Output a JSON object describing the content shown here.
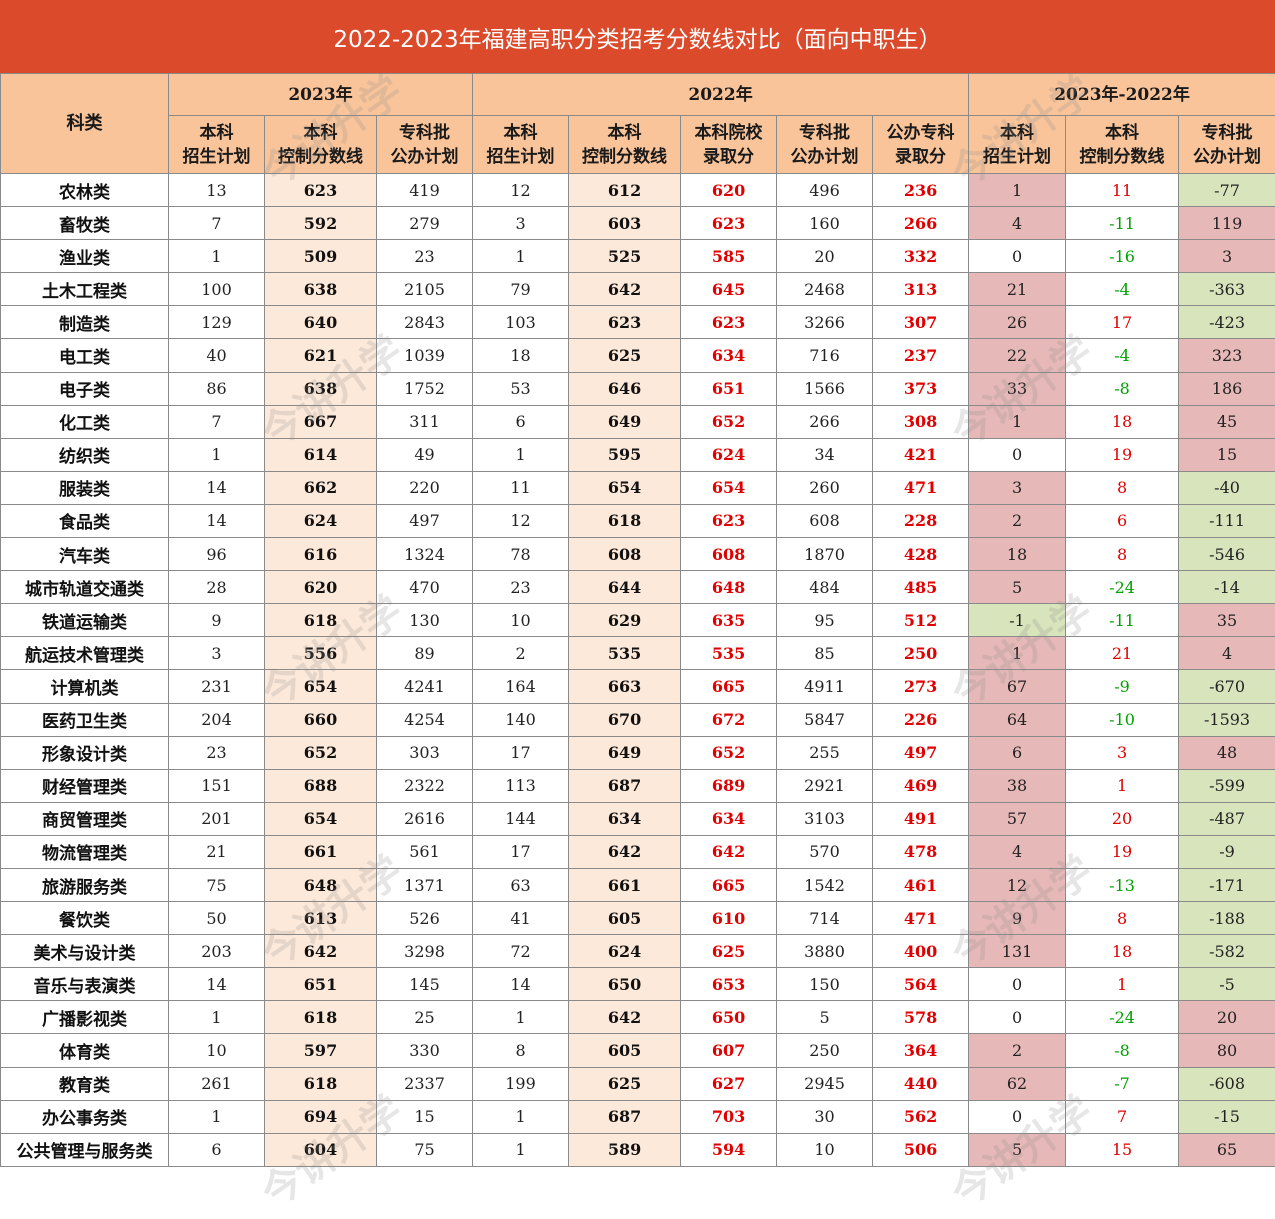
{
  "title": "2022-2023年福建高职分类招考分数线对比（面向中职生）",
  "header": {
    "subject": "科类",
    "group_2023": "2023年",
    "group_2022": "2022年",
    "group_diff": "2023年-2022年",
    "cols_2023": [
      {
        "l1": "本科",
        "l2": "招生计划"
      },
      {
        "l1": "本科",
        "l2": "控制分数线"
      },
      {
        "l1": "专科批",
        "l2": "公办计划"
      }
    ],
    "cols_2022": [
      {
        "l1": "本科",
        "l2": "招生计划"
      },
      {
        "l1": "本科",
        "l2": "控制分数线"
      },
      {
        "l1": "本科院校",
        "l2": "录取分"
      },
      {
        "l1": "专科批",
        "l2": "公办计划"
      },
      {
        "l1": "公办专科",
        "l2": "录取分"
      }
    ],
    "cols_diff": [
      {
        "l1": "本科",
        "l2": "招生计划"
      },
      {
        "l1": "本科",
        "l2": "控制分数线"
      },
      {
        "l1": "专科批",
        "l2": "公办计划"
      }
    ]
  },
  "watermark": "今讲升学",
  "rows": [
    {
      "subject": "农林类",
      "p23": "13",
      "c23": "623",
      "z23": "419",
      "p22": "12",
      "c22": "612",
      "a22": "620",
      "z22": "496",
      "s22": "236",
      "dp": "1",
      "dc": "11",
      "dz": "-77"
    },
    {
      "subject": "畜牧类",
      "p23": "7",
      "c23": "592",
      "z23": "279",
      "p22": "3",
      "c22": "603",
      "a22": "623",
      "z22": "160",
      "s22": "266",
      "dp": "4",
      "dc": "-11",
      "dz": "119"
    },
    {
      "subject": "渔业类",
      "p23": "1",
      "c23": "509",
      "z23": "23",
      "p22": "1",
      "c22": "525",
      "a22": "585",
      "z22": "20",
      "s22": "332",
      "dp": "0",
      "dc": "-16",
      "dz": "3"
    },
    {
      "subject": "土木工程类",
      "p23": "100",
      "c23": "638",
      "z23": "2105",
      "p22": "79",
      "c22": "642",
      "a22": "645",
      "z22": "2468",
      "s22": "313",
      "dp": "21",
      "dc": "-4",
      "dz": "-363"
    },
    {
      "subject": "制造类",
      "p23": "129",
      "c23": "640",
      "z23": "2843",
      "p22": "103",
      "c22": "623",
      "a22": "623",
      "z22": "3266",
      "s22": "307",
      "dp": "26",
      "dc": "17",
      "dz": "-423"
    },
    {
      "subject": "电工类",
      "p23": "40",
      "c23": "621",
      "z23": "1039",
      "p22": "18",
      "c22": "625",
      "a22": "634",
      "z22": "716",
      "s22": "237",
      "dp": "22",
      "dc": "-4",
      "dz": "323"
    },
    {
      "subject": "电子类",
      "p23": "86",
      "c23": "638",
      "z23": "1752",
      "p22": "53",
      "c22": "646",
      "a22": "651",
      "z22": "1566",
      "s22": "373",
      "dp": "33",
      "dc": "-8",
      "dz": "186"
    },
    {
      "subject": "化工类",
      "p23": "7",
      "c23": "667",
      "z23": "311",
      "p22": "6",
      "c22": "649",
      "a22": "652",
      "z22": "266",
      "s22": "308",
      "dp": "1",
      "dc": "18",
      "dz": "45"
    },
    {
      "subject": "纺织类",
      "p23": "1",
      "c23": "614",
      "z23": "49",
      "p22": "1",
      "c22": "595",
      "a22": "624",
      "z22": "34",
      "s22": "421",
      "dp": "0",
      "dc": "19",
      "dz": "15"
    },
    {
      "subject": "服装类",
      "p23": "14",
      "c23": "662",
      "z23": "220",
      "p22": "11",
      "c22": "654",
      "a22": "654",
      "z22": "260",
      "s22": "471",
      "dp": "3",
      "dc": "8",
      "dz": "-40"
    },
    {
      "subject": "食品类",
      "p23": "14",
      "c23": "624",
      "z23": "497",
      "p22": "12",
      "c22": "618",
      "a22": "623",
      "z22": "608",
      "s22": "228",
      "dp": "2",
      "dc": "6",
      "dz": "-111"
    },
    {
      "subject": "汽车类",
      "p23": "96",
      "c23": "616",
      "z23": "1324",
      "p22": "78",
      "c22": "608",
      "a22": "608",
      "z22": "1870",
      "s22": "428",
      "dp": "18",
      "dc": "8",
      "dz": "-546"
    },
    {
      "subject": "城市轨道交通类",
      "p23": "28",
      "c23": "620",
      "z23": "470",
      "p22": "23",
      "c22": "644",
      "a22": "648",
      "z22": "484",
      "s22": "485",
      "dp": "5",
      "dc": "-24",
      "dz": "-14"
    },
    {
      "subject": "铁道运输类",
      "p23": "9",
      "c23": "618",
      "z23": "130",
      "p22": "10",
      "c22": "629",
      "a22": "635",
      "z22": "95",
      "s22": "512",
      "dp": "-1",
      "dc": "-11",
      "dz": "35"
    },
    {
      "subject": "航运技术管理类",
      "p23": "3",
      "c23": "556",
      "z23": "89",
      "p22": "2",
      "c22": "535",
      "a22": "535",
      "z22": "85",
      "s22": "250",
      "dp": "1",
      "dc": "21",
      "dz": "4"
    },
    {
      "subject": "计算机类",
      "p23": "231",
      "c23": "654",
      "z23": "4241",
      "p22": "164",
      "c22": "663",
      "a22": "665",
      "z22": "4911",
      "s22": "273",
      "dp": "67",
      "dc": "-9",
      "dz": "-670"
    },
    {
      "subject": "医药卫生类",
      "p23": "204",
      "c23": "660",
      "z23": "4254",
      "p22": "140",
      "c22": "670",
      "a22": "672",
      "z22": "5847",
      "s22": "226",
      "dp": "64",
      "dc": "-10",
      "dz": "-1593"
    },
    {
      "subject": "形象设计类",
      "p23": "23",
      "c23": "652",
      "z23": "303",
      "p22": "17",
      "c22": "649",
      "a22": "652",
      "z22": "255",
      "s22": "497",
      "dp": "6",
      "dc": "3",
      "dz": "48"
    },
    {
      "subject": "财经管理类",
      "p23": "151",
      "c23": "688",
      "z23": "2322",
      "p22": "113",
      "c22": "687",
      "a22": "689",
      "z22": "2921",
      "s22": "469",
      "dp": "38",
      "dc": "1",
      "dz": "-599"
    },
    {
      "subject": "商贸管理类",
      "p23": "201",
      "c23": "654",
      "z23": "2616",
      "p22": "144",
      "c22": "634",
      "a22": "634",
      "z22": "3103",
      "s22": "491",
      "dp": "57",
      "dc": "20",
      "dz": "-487"
    },
    {
      "subject": "物流管理类",
      "p23": "21",
      "c23": "661",
      "z23": "561",
      "p22": "17",
      "c22": "642",
      "a22": "642",
      "z22": "570",
      "s22": "478",
      "dp": "4",
      "dc": "19",
      "dz": "-9"
    },
    {
      "subject": "旅游服务类",
      "p23": "75",
      "c23": "648",
      "z23": "1371",
      "p22": "63",
      "c22": "661",
      "a22": "665",
      "z22": "1542",
      "s22": "461",
      "dp": "12",
      "dc": "-13",
      "dz": "-171"
    },
    {
      "subject": "餐饮类",
      "p23": "50",
      "c23": "613",
      "z23": "526",
      "p22": "41",
      "c22": "605",
      "a22": "610",
      "z22": "714",
      "s22": "471",
      "dp": "9",
      "dc": "8",
      "dz": "-188"
    },
    {
      "subject": "美术与设计类",
      "p23": "203",
      "c23": "642",
      "z23": "3298",
      "p22": "72",
      "c22": "624",
      "a22": "625",
      "z22": "3880",
      "s22": "400",
      "dp": "131",
      "dc": "18",
      "dz": "-582"
    },
    {
      "subject": "音乐与表演类",
      "p23": "14",
      "c23": "651",
      "z23": "145",
      "p22": "14",
      "c22": "650",
      "a22": "653",
      "z22": "150",
      "s22": "564",
      "dp": "0",
      "dc": "1",
      "dz": "-5"
    },
    {
      "subject": "广播影视类",
      "p23": "1",
      "c23": "618",
      "z23": "25",
      "p22": "1",
      "c22": "642",
      "a22": "650",
      "z22": "5",
      "s22": "578",
      "dp": "0",
      "dc": "-24",
      "dz": "20"
    },
    {
      "subject": "体育类",
      "p23": "10",
      "c23": "597",
      "z23": "330",
      "p22": "8",
      "c22": "605",
      "a22": "607",
      "z22": "250",
      "s22": "364",
      "dp": "2",
      "dc": "-8",
      "dz": "80"
    },
    {
      "subject": "教育类",
      "p23": "261",
      "c23": "618",
      "z23": "2337",
      "p22": "199",
      "c22": "625",
      "a22": "627",
      "z22": "2945",
      "s22": "440",
      "dp": "62",
      "dc": "-7",
      "dz": "-608"
    },
    {
      "subject": "办公事务类",
      "p23": "1",
      "c23": "694",
      "z23": "15",
      "p22": "1",
      "c22": "687",
      "a22": "703",
      "z22": "30",
      "s22": "562",
      "dp": "0",
      "dc": "7",
      "dz": "-15"
    },
    {
      "subject": "公共管理与服务类",
      "p23": "6",
      "c23": "604",
      "z23": "75",
      "p22": "1",
      "c22": "589",
      "a22": "594",
      "z22": "10",
      "s22": "506",
      "dp": "5",
      "dc": "15",
      "dz": "65"
    }
  ]
}
